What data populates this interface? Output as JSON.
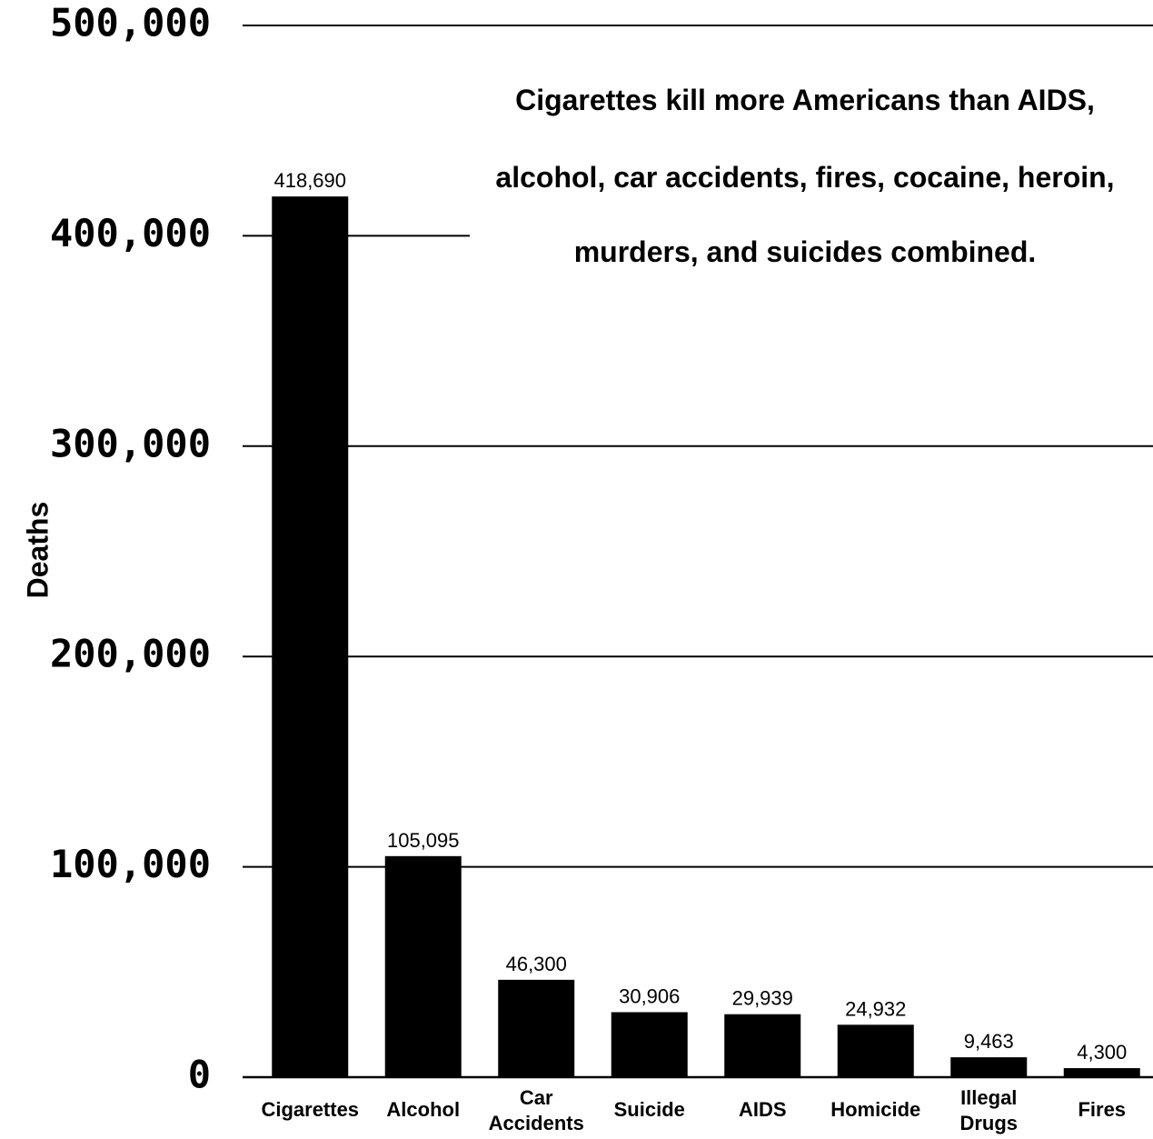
{
  "chart_data": {
    "type": "bar",
    "title_lines": [
      "Cigarettes kill more Americans than AIDS,",
      "alcohol, car accidents, fires, cocaine, heroin,",
      "murders, and suicides combined."
    ],
    "xlabel": "",
    "ylabel": "Deaths",
    "ylim": [
      0,
      500000
    ],
    "yticks": [
      0,
      100000,
      200000,
      300000,
      400000,
      500000
    ],
    "ytick_labels": [
      "0",
      "100,000",
      "200,000",
      "300,000",
      "400,000",
      "500,000"
    ],
    "grid": "horizontal",
    "categories": [
      [
        "Cigarettes"
      ],
      [
        "Alcohol"
      ],
      [
        "Car",
        "Accidents"
      ],
      [
        "Suicide"
      ],
      [
        "AIDS"
      ],
      [
        "Homicide"
      ],
      [
        "Illegal",
        "Drugs"
      ],
      [
        "Fires"
      ]
    ],
    "values": [
      418690,
      105095,
      46300,
      30906,
      29939,
      24932,
      9463,
      4300
    ],
    "value_labels": [
      "418,690",
      "105,095",
      "46,300",
      "30,906",
      "29,939",
      "24,932",
      "9,463",
      "4,300"
    ],
    "bar_color": "#000000"
  }
}
